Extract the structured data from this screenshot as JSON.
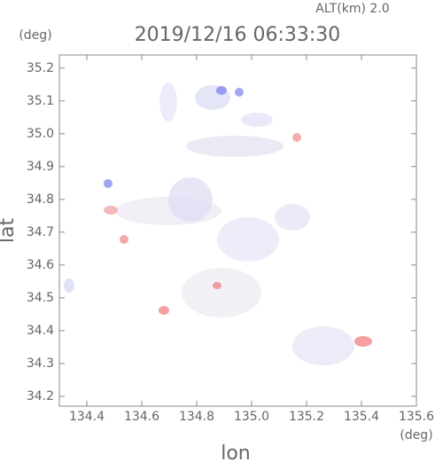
{
  "chart_data": {
    "type": "radar-map",
    "title": "2019/12/16 06:33:30",
    "subtitle": "ALT(km) 2.0",
    "x_label": "lon",
    "y_label": "lat",
    "x_unit": "(deg)",
    "y_unit": "(deg)",
    "xlim": [
      134.3,
      135.6
    ],
    "ylim": [
      34.17,
      35.24
    ],
    "xticks": [
      134.4,
      134.6,
      134.8,
      {
        "value": 135,
        "label": "135.0"
      },
      135.2,
      135.4,
      135.6
    ],
    "yticks": [
      34.2,
      34.3,
      34.4,
      34.5,
      34.6,
      34.7,
      34.8,
      34.9,
      {
        "value": 35,
        "label": "35.0"
      },
      35.1,
      35.2
    ]
  }
}
